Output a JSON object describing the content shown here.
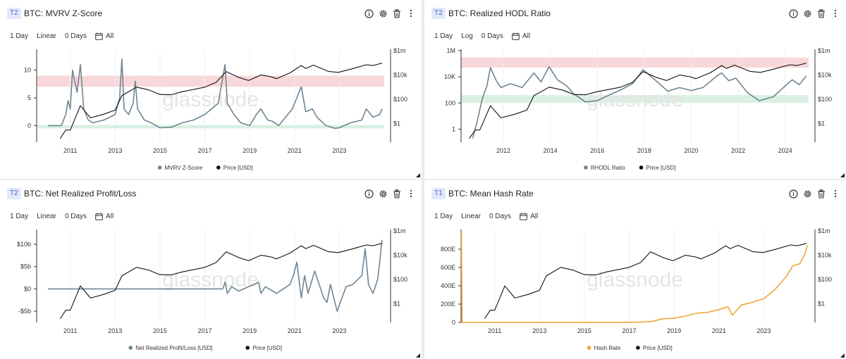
{
  "watermark": "glassnode",
  "panels": [
    {
      "tier": "T2",
      "title": "BTC: MVRV Z-Score",
      "controls": {
        "resolution": "1 Day",
        "scale": "Linear",
        "sma": "0 Days",
        "range": "All"
      },
      "chart_data": {
        "type": "line",
        "x_ticks": [
          "2011",
          "2013",
          "2015",
          "2017",
          "2019",
          "2021",
          "2023"
        ],
        "x_domain": [
          2009.5,
          2025.0
        ],
        "left_axis": {
          "ticks": [
            "10",
            "5",
            "0"
          ],
          "tick_values": [
            10,
            5,
            0
          ],
          "ylim": [
            -3,
            13.5
          ],
          "scale": "linear"
        },
        "right_axis": {
          "ticks": [
            "$1m",
            "$10k",
            "$100",
            "$1"
          ],
          "tick_values": [
            1000000,
            10000,
            100,
            1
          ],
          "ylim": [
            0.03,
            1000000
          ],
          "scale": "log"
        },
        "bands": [
          {
            "from": 7,
            "to": 9,
            "color": "#f8d7da"
          },
          {
            "from": -0.5,
            "to": 0.1,
            "color": "#d9f0e3"
          }
        ],
        "series": [
          {
            "name": "MVRV Z-Score",
            "axis": "left",
            "color": "#6f8592",
            "x": [
              2010.0,
              2010.5,
              2010.6,
              2010.8,
              2010.9,
              2011.0,
              2011.1,
              2011.3,
              2011.45,
              2011.6,
              2011.8,
              2012.0,
              2012.5,
              2013.0,
              2013.2,
              2013.3,
              2013.4,
              2013.6,
              2013.8,
              2013.9,
              2014.0,
              2014.3,
              2014.6,
              2015.0,
              2015.5,
              2016.0,
              2016.5,
              2017.0,
              2017.3,
              2017.6,
              2017.9,
              2018.0,
              2018.3,
              2018.6,
              2019.0,
              2019.3,
              2019.5,
              2019.8,
              2020.0,
              2020.3,
              2020.6,
              2020.9,
              2021.1,
              2021.3,
              2021.5,
              2021.8,
              2022.0,
              2022.4,
              2022.8,
              2023.0,
              2023.5,
              2024.0,
              2024.2,
              2024.5,
              2024.8,
              2024.9
            ],
            "y": [
              0,
              0,
              0,
              2,
              4.5,
              3,
              10,
              6,
              11,
              3,
              1,
              0.5,
              1,
              2,
              5,
              12,
              3,
              2,
              4,
              8,
              3,
              1,
              0.5,
              -0.4,
              -0.3,
              0.5,
              1,
              2,
              3,
              4,
              11,
              4,
              2,
              0.5,
              0,
              2,
              3,
              1,
              0.8,
              0,
              1.5,
              3,
              5,
              7,
              2.5,
              3,
              1.5,
              0,
              -0.5,
              -0.4,
              0.5,
              1,
              3,
              1.5,
              2,
              3
            ]
          },
          {
            "name": "Price [USD]",
            "axis": "right",
            "color": "#111111",
            "x": [
              2010.55,
              2010.8,
              2011.0,
              2011.45,
              2011.9,
              2012.5,
              2013.0,
              2013.3,
              2013.95,
              2014.5,
              2015.0,
              2015.5,
              2016.0,
              2016.5,
              2017.0,
              2017.5,
              2017.95,
              2018.5,
              2018.95,
              2019.5,
              2019.95,
              2020.2,
              2020.8,
              2021.3,
              2021.5,
              2021.85,
              2022.5,
              2022.95,
              2023.5,
              2024.2,
              2024.5,
              2024.9
            ],
            "y": [
              0.06,
              0.3,
              0.3,
              30,
              3,
              6,
              13,
              200,
              1000,
              600,
              250,
              240,
              430,
              650,
              1000,
              2500,
              19000,
              6500,
              3500,
              10000,
              7200,
              5000,
              15000,
              60000,
              35000,
              65000,
              20000,
              16500,
              30000,
              70000,
              60000,
              95000
            ]
          }
        ]
      }
    },
    {
      "tier": "T2",
      "title": "BTC: Realized HODL Ratio",
      "controls": {
        "resolution": "1 Day",
        "scale": "Log",
        "sma": "0 Days",
        "range": "All"
      },
      "chart_data": {
        "type": "line",
        "x_ticks": [
          "2012",
          "2014",
          "2016",
          "2018",
          "2020",
          "2022",
          "2024"
        ],
        "x_domain": [
          2010.2,
          2025.0
        ],
        "left_axis": {
          "ticks": [
            "1M",
            "10K",
            "100",
            "1"
          ],
          "tick_values": [
            1000000,
            10000,
            100,
            1
          ],
          "ylim": [
            0.1,
            1000000
          ],
          "scale": "log"
        },
        "right_axis": {
          "ticks": [
            "$1m",
            "$10k",
            "$100",
            "$1"
          ],
          "tick_values": [
            1000000,
            10000,
            100,
            1
          ],
          "ylim": [
            0.03,
            1000000
          ],
          "scale": "log"
        },
        "bands": [
          {
            "from": 50000,
            "to": 300000,
            "color": "#f8d7da"
          },
          {
            "from": 100,
            "to": 400,
            "color": "#d9f0e3"
          }
        ],
        "series": [
          {
            "name": "RHODL Ratio",
            "axis": "left",
            "color": "#6f8592",
            "x": [
              2010.7,
              2010.9,
              2011.1,
              2011.3,
              2011.45,
              2011.7,
              2011.9,
              2012.3,
              2012.8,
              2013.3,
              2013.6,
              2013.95,
              2014.3,
              2014.7,
              2015.0,
              2015.5,
              2016.0,
              2016.5,
              2017.0,
              2017.5,
              2017.95,
              2018.5,
              2019.0,
              2019.5,
              2020.0,
              2020.5,
              2021.1,
              2021.3,
              2021.6,
              2021.9,
              2022.4,
              2022.9,
              2023.5,
              2024.0,
              2024.3,
              2024.6,
              2024.9
            ],
            "y": [
              0.2,
              5,
              200,
              2000,
              50000,
              5000,
              1500,
              3000,
              1500,
              20000,
              4000,
              60000,
              6000,
              2000,
              500,
              120,
              150,
              400,
              1000,
              3000,
              35000,
              5000,
              800,
              1500,
              900,
              1500,
              12000,
              20000,
              5000,
              8000,
              600,
              150,
              300,
              2000,
              6000,
              2500,
              12000
            ]
          },
          {
            "name": "Price [USD]",
            "axis": "right",
            "color": "#111111",
            "x": [
              2010.55,
              2010.8,
              2011.0,
              2011.45,
              2011.9,
              2012.5,
              2013.0,
              2013.3,
              2013.95,
              2014.5,
              2015.0,
              2015.5,
              2016.0,
              2016.5,
              2017.0,
              2017.5,
              2017.95,
              2018.5,
              2018.95,
              2019.5,
              2019.95,
              2020.2,
              2020.8,
              2021.3,
              2021.5,
              2021.85,
              2022.5,
              2022.95,
              2023.5,
              2024.2,
              2024.5,
              2024.9
            ],
            "y": [
              0.06,
              0.3,
              0.3,
              30,
              3,
              6,
              13,
              200,
              1000,
              600,
              250,
              240,
              430,
              650,
              1000,
              2500,
              19000,
              6500,
              3500,
              10000,
              7200,
              5000,
              15000,
              60000,
              35000,
              65000,
              20000,
              16500,
              30000,
              70000,
              60000,
              95000
            ]
          }
        ]
      }
    },
    {
      "tier": "T2",
      "title": "BTC: Net Realized Profit/Loss",
      "controls": {
        "resolution": "1 Day",
        "scale": "Linear",
        "sma": "0 Days",
        "range": "All"
      },
      "chart_data": {
        "type": "line",
        "x_ticks": [
          "2011",
          "2013",
          "2015",
          "2017",
          "2019",
          "2021",
          "2023"
        ],
        "x_domain": [
          2009.5,
          2025.0
        ],
        "left_axis": {
          "ticks": [
            "$10b",
            "$5b",
            "$0",
            "-$5b"
          ],
          "tick_values": [
            10,
            5,
            0,
            -5
          ],
          "ylim": [
            -7.5,
            13
          ],
          "scale": "linear"
        },
        "right_axis": {
          "ticks": [
            "$1m",
            "$10k",
            "$100",
            "$1"
          ],
          "tick_values": [
            1000000,
            10000,
            100,
            1
          ],
          "ylim": [
            0.03,
            1000000
          ],
          "scale": "log"
        },
        "bands": [],
        "series": [
          {
            "name": "Net Realized Profit/Loss [USD]",
            "axis": "left",
            "color": "#6f8592",
            "x": [
              2010.0,
              2017.8,
              2017.9,
              2018.0,
              2018.2,
              2018.5,
              2019.4,
              2019.5,
              2019.7,
              2020.2,
              2020.8,
              2020.95,
              2021.1,
              2021.3,
              2021.45,
              2021.6,
              2021.9,
              2022.3,
              2022.45,
              2022.6,
              2022.9,
              2023.3,
              2023.6,
              2024.0,
              2024.15,
              2024.3,
              2024.5,
              2024.7,
              2024.8,
              2024.9
            ],
            "y": [
              0,
              0,
              1.5,
              -1,
              0.5,
              -0.5,
              1.5,
              -1,
              0.5,
              -1,
              1,
              3,
              6,
              -2,
              3,
              -1,
              4,
              -2,
              -3,
              1,
              -5,
              0.5,
              1,
              3,
              9,
              1,
              -1,
              2,
              6,
              11
            ]
          },
          {
            "name": "Price [USD]",
            "axis": "right",
            "color": "#111111",
            "x": [
              2010.55,
              2010.8,
              2011.0,
              2011.45,
              2011.9,
              2012.5,
              2013.0,
              2013.3,
              2013.95,
              2014.5,
              2015.0,
              2015.5,
              2016.0,
              2016.5,
              2017.0,
              2017.5,
              2017.95,
              2018.5,
              2018.95,
              2019.5,
              2019.95,
              2020.2,
              2020.8,
              2021.3,
              2021.5,
              2021.85,
              2022.5,
              2022.95,
              2023.5,
              2024.2,
              2024.5,
              2024.9
            ],
            "y": [
              0.06,
              0.3,
              0.3,
              30,
              3,
              6,
              13,
              200,
              1000,
              600,
              250,
              240,
              430,
              650,
              1000,
              2500,
              19000,
              6500,
              3500,
              10000,
              7200,
              5000,
              15000,
              60000,
              35000,
              65000,
              20000,
              16500,
              30000,
              70000,
              60000,
              95000
            ]
          }
        ]
      }
    },
    {
      "tier": "T1",
      "title": "BTC: Mean Hash Rate",
      "controls": {
        "resolution": "1 Day",
        "scale": "Linear",
        "sma": "0 Days",
        "range": "All"
      },
      "chart_data": {
        "type": "line",
        "x_ticks": [
          "2011",
          "2013",
          "2015",
          "2017",
          "2019",
          "2021",
          "2023"
        ],
        "x_domain": [
          2009.5,
          2025.0
        ],
        "left_axis": {
          "ticks": [
            "800E",
            "600E",
            "400E",
            "200E",
            "0"
          ],
          "tick_values": [
            800,
            600,
            400,
            200,
            0
          ],
          "ylim": [
            0,
            1000
          ],
          "scale": "linear"
        },
        "right_axis": {
          "ticks": [
            "$1m",
            "$10k",
            "$100",
            "$1"
          ],
          "tick_values": [
            1000000,
            10000,
            100,
            1
          ],
          "ylim": [
            0.03,
            1000000
          ],
          "scale": "log"
        },
        "bands": [],
        "series": [
          {
            "name": "Hash Rate",
            "axis": "left",
            "color": "#f0a53c",
            "x": [
              2009.5,
              2009.52,
              2009.54,
              2016.5,
              2017.5,
              2018.0,
              2018.5,
              2019.0,
              2019.5,
              2020.0,
              2020.5,
              2021.0,
              2021.4,
              2021.6,
              2022.0,
              2022.5,
              2023.0,
              2023.5,
              2024.0,
              2024.3,
              2024.6,
              2024.8,
              2024.95
            ],
            "y": [
              1000,
              1000,
              0,
              1,
              3,
              10,
              40,
              45,
              70,
              100,
              110,
              140,
              170,
              80,
              190,
              220,
              260,
              360,
              500,
              620,
              640,
              730,
              840
            ]
          },
          {
            "name": "Price [USD]",
            "axis": "right",
            "color": "#111111",
            "x": [
              2010.55,
              2010.8,
              2011.0,
              2011.45,
              2011.9,
              2012.5,
              2013.0,
              2013.3,
              2013.95,
              2014.5,
              2015.0,
              2015.5,
              2016.0,
              2016.5,
              2017.0,
              2017.5,
              2017.95,
              2018.5,
              2018.95,
              2019.5,
              2019.95,
              2020.2,
              2020.8,
              2021.3,
              2021.5,
              2021.85,
              2022.5,
              2022.95,
              2023.5,
              2024.2,
              2024.5,
              2024.9
            ],
            "y": [
              0.06,
              0.3,
              0.3,
              30,
              3,
              6,
              13,
              200,
              1000,
              600,
              250,
              240,
              430,
              650,
              1000,
              2500,
              19000,
              6500,
              3500,
              10000,
              7200,
              5000,
              15000,
              60000,
              35000,
              65000,
              20000,
              16500,
              30000,
              70000,
              60000,
              95000
            ]
          }
        ]
      }
    }
  ]
}
